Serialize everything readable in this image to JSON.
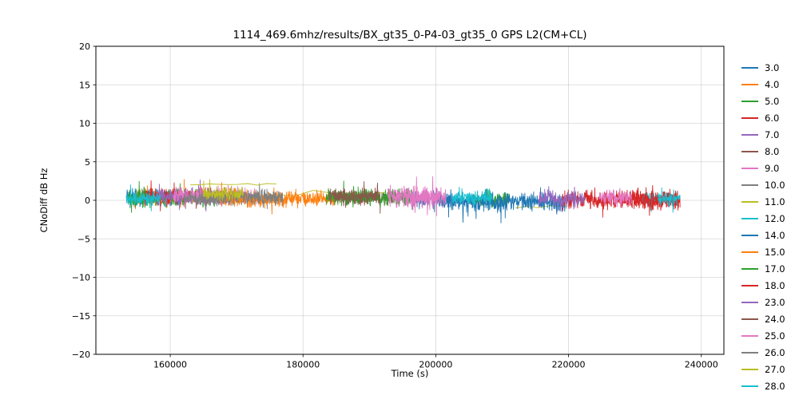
{
  "chart_data": {
    "type": "line",
    "title": "1114_469.6mhz/results/BX_gt35_0-P4-03_gt35_0 GPS L2(CM+CL)",
    "xlabel": "Time (s)",
    "ylabel": "CNoDiff dB Hz",
    "xlim": [
      148800,
      243400
    ],
    "ylim": [
      -20,
      20
    ],
    "xticks": [
      160000,
      180000,
      200000,
      220000,
      240000
    ],
    "xtick_labels": [
      "160000",
      "180000",
      "200000",
      "220000",
      "240000"
    ],
    "yticks": [
      -20,
      -15,
      -10,
      -5,
      0,
      5,
      10,
      15,
      20
    ],
    "ytick_labels": [
      "−20",
      "−15",
      "−10",
      "−5",
      "0",
      "5",
      "10",
      "15",
      "20"
    ],
    "grid": true,
    "legend_position": "right-outside",
    "description": "Noisy CNo difference traces for multiple GPS PRNs, all fluctuating around 0 dB (approx ±3 dB) between t≈153400 s and t≈236800 s",
    "series": [
      {
        "name": "3.0",
        "color": "#1f77b4",
        "segments": [
          {
            "x0": 153400,
            "x1": 161500,
            "mean": 0.3,
            "amp": 1.6
          },
          {
            "x0": 196000,
            "x1": 201000,
            "mean": 0.2,
            "amp": 1.5
          }
        ]
      },
      {
        "name": "4.0",
        "color": "#ff7f0e",
        "segments": [
          {
            "x0": 154500,
            "x1": 163500,
            "mean": 0.4,
            "amp": 1.5
          }
        ]
      },
      {
        "name": "5.0",
        "color": "#2ca02c",
        "segments": [
          {
            "x0": 153600,
            "x1": 167000,
            "mean": 0.3,
            "amp": 1.6
          },
          {
            "x0": 205000,
            "x1": 211000,
            "mean": 0.0,
            "amp": 1.4
          }
        ]
      },
      {
        "name": "6.0",
        "color": "#d62728",
        "segments": [
          {
            "x0": 156000,
            "x1": 168500,
            "mean": 0.5,
            "amp": 1.5
          },
          {
            "x0": 228000,
            "x1": 236500,
            "mean": 0.0,
            "amp": 1.6
          }
        ]
      },
      {
        "name": "7.0",
        "color": "#9467bd",
        "segments": [
          {
            "x0": 158000,
            "x1": 170500,
            "mean": 0.4,
            "amp": 1.4
          }
        ]
      },
      {
        "name": "8.0",
        "color": "#8c564b",
        "segments": [
          {
            "x0": 184500,
            "x1": 193500,
            "mean": 0.3,
            "amp": 1.5
          }
        ]
      },
      {
        "name": "9.0",
        "color": "#e377c2",
        "segments": [
          {
            "x0": 160500,
            "x1": 173000,
            "mean": 0.6,
            "amp": 1.5
          },
          {
            "x0": 193500,
            "x1": 200500,
            "mean": 0.3,
            "amp": 1.8
          }
        ]
      },
      {
        "name": "10.0",
        "color": "#7f7f7f",
        "segments": [
          {
            "x0": 162000,
            "x1": 175000,
            "mean": 0.3,
            "amp": 1.3
          }
        ]
      },
      {
        "name": "11.0",
        "color": "#bcbd22",
        "segments": [
          {
            "x0": 163000,
            "x1": 176000,
            "mean": 2.0,
            "amp": 0.3,
            "n": 9
          },
          {
            "x0": 176000,
            "x1": 192500,
            "mean": 0.9,
            "amp": 0.5,
            "n": 6
          },
          {
            "x0": 212000,
            "x1": 220500,
            "mean": -0.7,
            "amp": 0.5,
            "n": 5
          }
        ]
      },
      {
        "name": "12.0",
        "color": "#17becf",
        "segments": [
          {
            "x0": 153400,
            "x1": 158500,
            "mean": 0.2,
            "amp": 1.3
          },
          {
            "x0": 231000,
            "x1": 236800,
            "mean": 0.3,
            "amp": 1.3
          }
        ]
      },
      {
        "name": "14.0",
        "color": "#1f77b4",
        "segments": [
          {
            "x0": 200500,
            "x1": 219500,
            "mean": -0.2,
            "amp": 1.7
          }
        ]
      },
      {
        "name": "15.0",
        "color": "#ff7f0e",
        "segments": [
          {
            "x0": 167500,
            "x1": 184800,
            "mean": 0.2,
            "amp": 1.6
          }
        ]
      },
      {
        "name": "17.0",
        "color": "#2ca02c",
        "segments": [
          {
            "x0": 183500,
            "x1": 196500,
            "mean": 0.4,
            "amp": 1.5
          }
        ]
      },
      {
        "name": "18.0",
        "color": "#d62728",
        "segments": [
          {
            "x0": 219000,
            "x1": 236800,
            "mean": 0.1,
            "amp": 1.7
          }
        ]
      },
      {
        "name": "23.0",
        "color": "#9467bd",
        "segments": [
          {
            "x0": 215500,
            "x1": 222500,
            "mean": 0.2,
            "amp": 1.5
          }
        ]
      },
      {
        "name": "24.0",
        "color": "#8c564b",
        "segments": [
          {
            "x0": 183800,
            "x1": 191500,
            "mean": 0.5,
            "amp": 1.4
          }
        ]
      },
      {
        "name": "25.0",
        "color": "#e377c2",
        "segments": [
          {
            "x0": 192800,
            "x1": 201500,
            "mean": 0.5,
            "amp": 1.9
          },
          {
            "x0": 224500,
            "x1": 229500,
            "mean": 0.4,
            "amp": 1.5
          }
        ]
      },
      {
        "name": "26.0",
        "color": "#7f7f7f",
        "segments": [
          {
            "x0": 164500,
            "x1": 177000,
            "mean": 0.4,
            "amp": 1.3
          }
        ]
      },
      {
        "name": "27.0",
        "color": "#bcbd22",
        "segments": [
          {
            "x0": 165000,
            "x1": 171000,
            "mean": 0.8,
            "amp": 1.2
          }
        ]
      },
      {
        "name": "28.0",
        "color": "#17becf",
        "segments": [
          {
            "x0": 202500,
            "x1": 208500,
            "mean": 0.4,
            "amp": 1.4
          },
          {
            "x0": 233500,
            "x1": 236800,
            "mean": 0.2,
            "amp": 1.2
          }
        ]
      }
    ]
  }
}
